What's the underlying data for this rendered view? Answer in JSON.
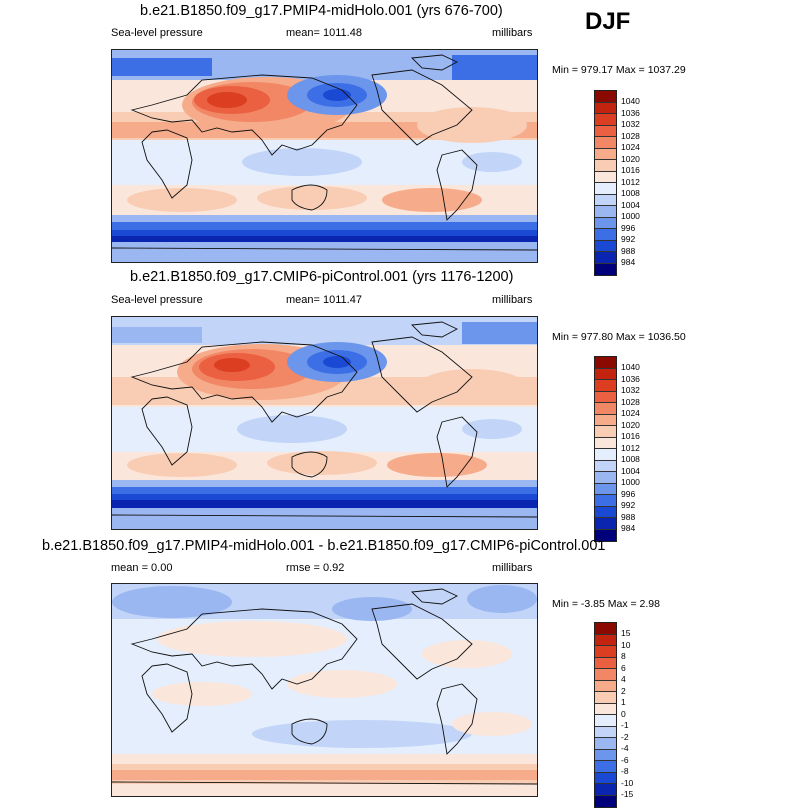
{
  "season": "DJF",
  "palette": {
    "cool": [
      "#00007a",
      "#0a25b0",
      "#1a49d3",
      "#3c6fe5",
      "#6c95ec",
      "#9ab7f2",
      "#c2d5f8",
      "#e4eefc"
    ],
    "warm": [
      "#fbe6dc",
      "#f9cdb4",
      "#f6ab8a",
      "#f28766",
      "#ea6040",
      "#db3e21",
      "#c22410",
      "#8b0a00"
    ]
  },
  "panels": [
    {
      "title": "b.e21.B1850.f09_g17.PMIP4-midHolo.001 (yrs 676-700)",
      "left_label": "Sea-level pressure",
      "center_label": "mean= 1011.48",
      "right_label": "millibars",
      "minmax": "Min = 979.17 Max = 1037.29",
      "colorbar_labels": [
        "1040",
        "1036",
        "1032",
        "1028",
        "1024",
        "1020",
        "1016",
        "1012",
        "1008",
        "1004",
        "1000",
        "996",
        "992",
        "988",
        "984"
      ]
    },
    {
      "title": "b.e21.B1850.f09_g17.CMIP6-piControl.001 (yrs 1176-1200)",
      "left_label": "Sea-level pressure",
      "center_label": "mean= 1011.47",
      "right_label": "millibars",
      "minmax": "Min = 977.80 Max = 1036.50",
      "colorbar_labels": [
        "1040",
        "1036",
        "1032",
        "1028",
        "1024",
        "1020",
        "1016",
        "1012",
        "1008",
        "1004",
        "1000",
        "996",
        "992",
        "988",
        "984"
      ]
    },
    {
      "title": "b.e21.B1850.f09_g17.PMIP4-midHolo.001 - b.e21.B1850.f09_g17.CMIP6-piControl.001",
      "left_label": "mean =   0.00",
      "center_label": "rmse =   0.92",
      "right_label": "millibars",
      "minmax": "Min =  -3.85 Max =   2.98",
      "colorbar_labels": [
        "15",
        "10",
        "8",
        "6",
        "4",
        "2",
        "1",
        "0",
        "-1",
        "-2",
        "-4",
        "-6",
        "-8",
        "-10",
        "-15"
      ]
    }
  ]
}
